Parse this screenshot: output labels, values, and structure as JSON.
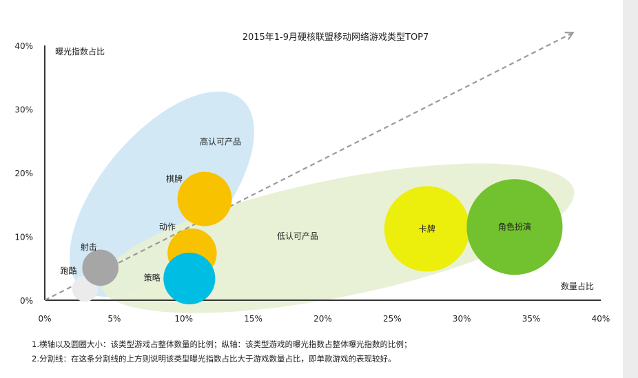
{
  "chart_data": {
    "type": "bubble",
    "title": "2015年1-9月硬核联盟移动网络游戏类型TOP7",
    "xlabel": "数量占比",
    "ylabel": "曝光指数占比",
    "xlim": [
      0,
      40
    ],
    "ylim": [
      0,
      40
    ],
    "x_ticks": [
      "0%",
      "5%",
      "10%",
      "15%",
      "20%",
      "25%",
      "30%",
      "35%",
      "40%"
    ],
    "y_ticks": [
      "0%",
      "10%",
      "20%",
      "30%",
      "40%"
    ],
    "regions": [
      {
        "label": "高认可产品",
        "color": "#cfe6f4"
      },
      {
        "label": "低认可产品",
        "color": "#e6f0d2"
      }
    ],
    "divider": {
      "from": [
        0,
        0
      ],
      "to": [
        38,
        42
      ],
      "style": "dashed-arrow"
    },
    "bubbles": [
      {
        "name": "跑酷",
        "x": 2.9,
        "y": 1.8,
        "size": 1.0,
        "color": "#ebebeb"
      },
      {
        "name": "射击",
        "x": 4.0,
        "y": 5.1,
        "size": 1.4,
        "color": "#a6a6a6"
      },
      {
        "name": "棋牌",
        "x": 11.5,
        "y": 15.9,
        "size": 2.1,
        "color": "#f9c200"
      },
      {
        "name": "动作",
        "x": 10.6,
        "y": 7.4,
        "size": 1.9,
        "color": "#f9c200"
      },
      {
        "name": "策略",
        "x": 10.4,
        "y": 3.4,
        "size": 2.0,
        "color": "#00bde3"
      },
      {
        "name": "卡牌",
        "x": 27.5,
        "y": 11.2,
        "size": 3.3,
        "color": "#ecee0c"
      },
      {
        "name": "角色扮演",
        "x": 33.8,
        "y": 11.5,
        "size": 3.7,
        "color": "#72c12e"
      }
    ]
  },
  "notes": [
    "1.横轴以及圆圈大小：该类型游戏占整体数量的比例；纵轴：该类型游戏的曝光指数占整体曝光指数的比例；",
    "2.分割线：在这条分割线的上方则说明该类型曝光指数占比大于游戏数量占比，即单款游戏的表现较好。"
  ]
}
